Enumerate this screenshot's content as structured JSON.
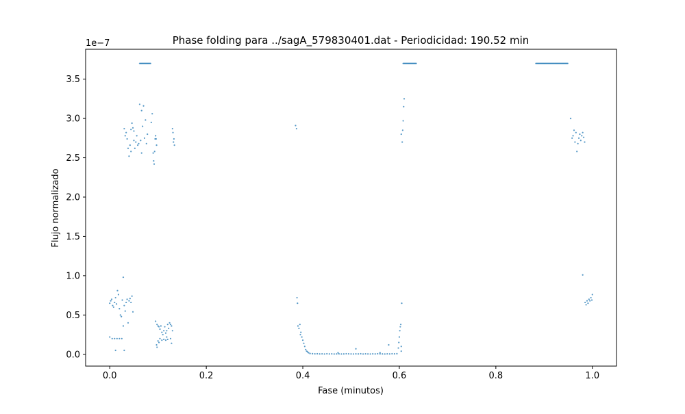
{
  "chart_data": {
    "type": "scatter",
    "title": "Phase folding para ../sagA_579830401.dat - Periodicidad: 190.52 min",
    "xlabel": "Fase (minutos)",
    "ylabel": "Flujo normalizado",
    "y_offset_label": "1e−7",
    "xlim": [
      -0.05,
      1.05
    ],
    "ylim": [
      -0.15,
      3.88
    ],
    "x_ticks": [
      0.0,
      0.2,
      0.4,
      0.6,
      0.8,
      1.0
    ],
    "x_tick_labels": [
      "0.0",
      "0.2",
      "0.4",
      "0.6",
      "0.8",
      "1.0"
    ],
    "y_ticks": [
      0.0,
      0.5,
      1.0,
      1.5,
      2.0,
      2.5,
      3.0,
      3.5
    ],
    "y_tick_labels": [
      "0.0",
      "0.5",
      "1.0",
      "1.5",
      "2.0",
      "2.5",
      "3.0",
      "3.5"
    ],
    "grid": false,
    "marker_color": "#1f77b4",
    "series": [
      {
        "points": [
          [
            0.0,
            0.65
          ],
          [
            0.002,
            0.68
          ],
          [
            0.004,
            0.7
          ],
          [
            0.006,
            0.62
          ],
          [
            0.008,
            0.6
          ],
          [
            0.01,
            0.66
          ],
          [
            0.012,
            0.72
          ],
          [
            0.014,
            0.64
          ],
          [
            0.016,
            0.81
          ],
          [
            0.018,
            0.76
          ],
          [
            0.02,
            0.58
          ],
          [
            0.022,
            0.5
          ],
          [
            0.024,
            0.48
          ],
          [
            0.026,
            0.69
          ],
          [
            0.028,
            0.98
          ],
          [
            0.03,
            0.62
          ],
          [
            0.032,
            0.55
          ],
          [
            0.034,
            0.66
          ],
          [
            0.036,
            0.7
          ],
          [
            0.038,
            0.4
          ],
          [
            0.04,
            0.68
          ],
          [
            0.042,
            0.71
          ],
          [
            0.044,
            0.66
          ],
          [
            0.046,
            0.74
          ],
          [
            0.048,
            0.54
          ],
          [
            0.028,
            0.36
          ],
          [
            0.0,
            0.22
          ],
          [
            0.005,
            0.2
          ],
          [
            0.01,
            0.2
          ],
          [
            0.015,
            0.2
          ],
          [
            0.02,
            0.2
          ],
          [
            0.025,
            0.2
          ],
          [
            0.012,
            0.05
          ],
          [
            0.03,
            0.05
          ],
          [
            0.03,
            2.87
          ],
          [
            0.032,
            2.78
          ],
          [
            0.034,
            2.82
          ],
          [
            0.036,
            2.74
          ],
          [
            0.038,
            2.62
          ],
          [
            0.04,
            2.52
          ],
          [
            0.042,
            2.66
          ],
          [
            0.044,
            2.58
          ],
          [
            0.046,
            2.94
          ],
          [
            0.048,
            2.88
          ],
          [
            0.05,
            2.72
          ],
          [
            0.052,
            2.62
          ],
          [
            0.054,
            2.7
          ],
          [
            0.056,
            2.78
          ],
          [
            0.058,
            2.66
          ],
          [
            0.06,
            2.68
          ],
          [
            0.062,
            3.18
          ],
          [
            0.064,
            2.72
          ],
          [
            0.066,
            2.56
          ],
          [
            0.068,
            2.9
          ],
          [
            0.07,
            3.16
          ],
          [
            0.072,
            2.75
          ],
          [
            0.074,
            2.98
          ],
          [
            0.076,
            2.68
          ],
          [
            0.078,
            2.8
          ],
          [
            0.05,
            2.84
          ],
          [
            0.044,
            2.86
          ],
          [
            0.066,
            3.1
          ],
          [
            0.086,
            2.95
          ],
          [
            0.088,
            3.06
          ],
          [
            0.09,
            2.56
          ],
          [
            0.091,
            2.46
          ],
          [
            0.092,
            2.42
          ],
          [
            0.094,
            2.74
          ],
          [
            0.095,
            2.78
          ],
          [
            0.096,
            2.74
          ],
          [
            0.093,
            2.58
          ],
          [
            0.097,
            2.66
          ],
          [
            0.13,
            2.87
          ],
          [
            0.131,
            2.82
          ],
          [
            0.132,
            2.7
          ],
          [
            0.133,
            2.74
          ],
          [
            0.134,
            2.66
          ],
          [
            0.095,
            0.42
          ],
          [
            0.098,
            0.38
          ],
          [
            0.1,
            0.36
          ],
          [
            0.102,
            0.35
          ],
          [
            0.104,
            0.32
          ],
          [
            0.106,
            0.36
          ],
          [
            0.108,
            0.28
          ],
          [
            0.11,
            0.25
          ],
          [
            0.112,
            0.3
          ],
          [
            0.114,
            0.35
          ],
          [
            0.116,
            0.27
          ],
          [
            0.118,
            0.22
          ],
          [
            0.12,
            0.38
          ],
          [
            0.122,
            0.33
          ],
          [
            0.124,
            0.4
          ],
          [
            0.126,
            0.38
          ],
          [
            0.128,
            0.36
          ],
          [
            0.13,
            0.3
          ],
          [
            0.1,
            0.17
          ],
          [
            0.104,
            0.2
          ],
          [
            0.108,
            0.18
          ],
          [
            0.112,
            0.19
          ],
          [
            0.116,
            0.18
          ],
          [
            0.12,
            0.19
          ],
          [
            0.126,
            0.2
          ],
          [
            0.097,
            0.12
          ],
          [
            0.098,
            0.09
          ],
          [
            0.102,
            0.15
          ],
          [
            0.128,
            0.14
          ],
          [
            0.118,
            0.3
          ],
          [
            0.385,
            2.91
          ],
          [
            0.387,
            2.87
          ],
          [
            0.388,
            0.72
          ],
          [
            0.389,
            0.65
          ],
          [
            0.39,
            0.36
          ],
          [
            0.392,
            0.33
          ],
          [
            0.394,
            0.38
          ],
          [
            0.395,
            0.25
          ],
          [
            0.396,
            0.28
          ],
          [
            0.398,
            0.22
          ],
          [
            0.4,
            0.18
          ],
          [
            0.402,
            0.14
          ],
          [
            0.404,
            0.1
          ],
          [
            0.406,
            0.06
          ],
          [
            0.408,
            0.04
          ],
          [
            0.41,
            0.03
          ],
          [
            0.412,
            0.02
          ],
          [
            0.415,
            0.01
          ],
          [
            0.42,
            0.008
          ],
          [
            0.425,
            0.006
          ],
          [
            0.43,
            0.007
          ],
          [
            0.435,
            0.005
          ],
          [
            0.44,
            0.006
          ],
          [
            0.445,
            0.004
          ],
          [
            0.45,
            0.007
          ],
          [
            0.455,
            0.005
          ],
          [
            0.46,
            0.006
          ],
          [
            0.465,
            0.004
          ],
          [
            0.47,
            0.005
          ],
          [
            0.475,
            0.006
          ],
          [
            0.48,
            0.004
          ],
          [
            0.485,
            0.005
          ],
          [
            0.49,
            0.007
          ],
          [
            0.495,
            0.006
          ],
          [
            0.5,
            0.005
          ],
          [
            0.505,
            0.004
          ],
          [
            0.51,
            0.006
          ],
          [
            0.515,
            0.005
          ],
          [
            0.52,
            0.007
          ],
          [
            0.525,
            0.004
          ],
          [
            0.53,
            0.006
          ],
          [
            0.535,
            0.005
          ],
          [
            0.54,
            0.004
          ],
          [
            0.545,
            0.006
          ],
          [
            0.55,
            0.005
          ],
          [
            0.555,
            0.007
          ],
          [
            0.56,
            0.006
          ],
          [
            0.565,
            0.005
          ],
          [
            0.57,
            0.004
          ],
          [
            0.575,
            0.006
          ],
          [
            0.58,
            0.005
          ],
          [
            0.585,
            0.007
          ],
          [
            0.59,
            0.006
          ],
          [
            0.595,
            0.008
          ],
          [
            0.51,
            0.07
          ],
          [
            0.56,
            0.02
          ],
          [
            0.578,
            0.12
          ],
          [
            0.473,
            0.02
          ],
          [
            0.598,
            0.08
          ],
          [
            0.599,
            0.15
          ],
          [
            0.6,
            0.22
          ],
          [
            0.601,
            0.3
          ],
          [
            0.602,
            0.35
          ],
          [
            0.603,
            0.38
          ],
          [
            0.604,
            0.1
          ],
          [
            0.605,
            0.65
          ],
          [
            0.604,
            0.04
          ],
          [
            0.604,
            2.8
          ],
          [
            0.606,
            2.7
          ],
          [
            0.607,
            2.85
          ],
          [
            0.608,
            2.97
          ],
          [
            0.609,
            3.15
          ],
          [
            0.61,
            3.25
          ],
          [
            0.955,
            3.0
          ],
          [
            0.958,
            2.75
          ],
          [
            0.96,
            2.78
          ],
          [
            0.962,
            2.85
          ],
          [
            0.964,
            2.7
          ],
          [
            0.966,
            2.82
          ],
          [
            0.968,
            2.58
          ],
          [
            0.97,
            2.68
          ],
          [
            0.972,
            2.75
          ],
          [
            0.974,
            2.8
          ],
          [
            0.976,
            2.72
          ],
          [
            0.978,
            2.78
          ],
          [
            0.98,
            2.82
          ],
          [
            0.982,
            2.76
          ],
          [
            0.984,
            2.7
          ],
          [
            0.98,
            1.01
          ],
          [
            0.985,
            0.66
          ],
          [
            0.987,
            0.63
          ],
          [
            0.989,
            0.68
          ],
          [
            0.991,
            0.65
          ],
          [
            0.993,
            0.7
          ],
          [
            0.995,
            0.68
          ],
          [
            0.997,
            0.72
          ],
          [
            0.999,
            0.69
          ],
          [
            1.0,
            0.76
          ]
        ],
        "saturated_segments": [
          {
            "x_range": [
              0.062,
              0.085
            ],
            "y": 3.7
          },
          {
            "x_range": [
              0.608,
              0.635
            ],
            "y": 3.7
          },
          {
            "x_range": [
              0.883,
              0.95
            ],
            "y": 3.7
          }
        ]
      }
    ]
  }
}
